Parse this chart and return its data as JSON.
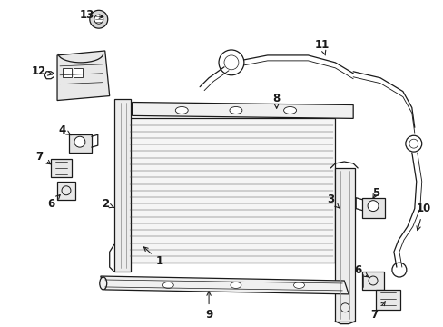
{
  "bg_color": "#ffffff",
  "line_color": "#1a1a1a",
  "fig_width": 4.89,
  "fig_height": 3.6,
  "dpi": 100,
  "lw": 0.9,
  "label_fontsize": 8.5
}
